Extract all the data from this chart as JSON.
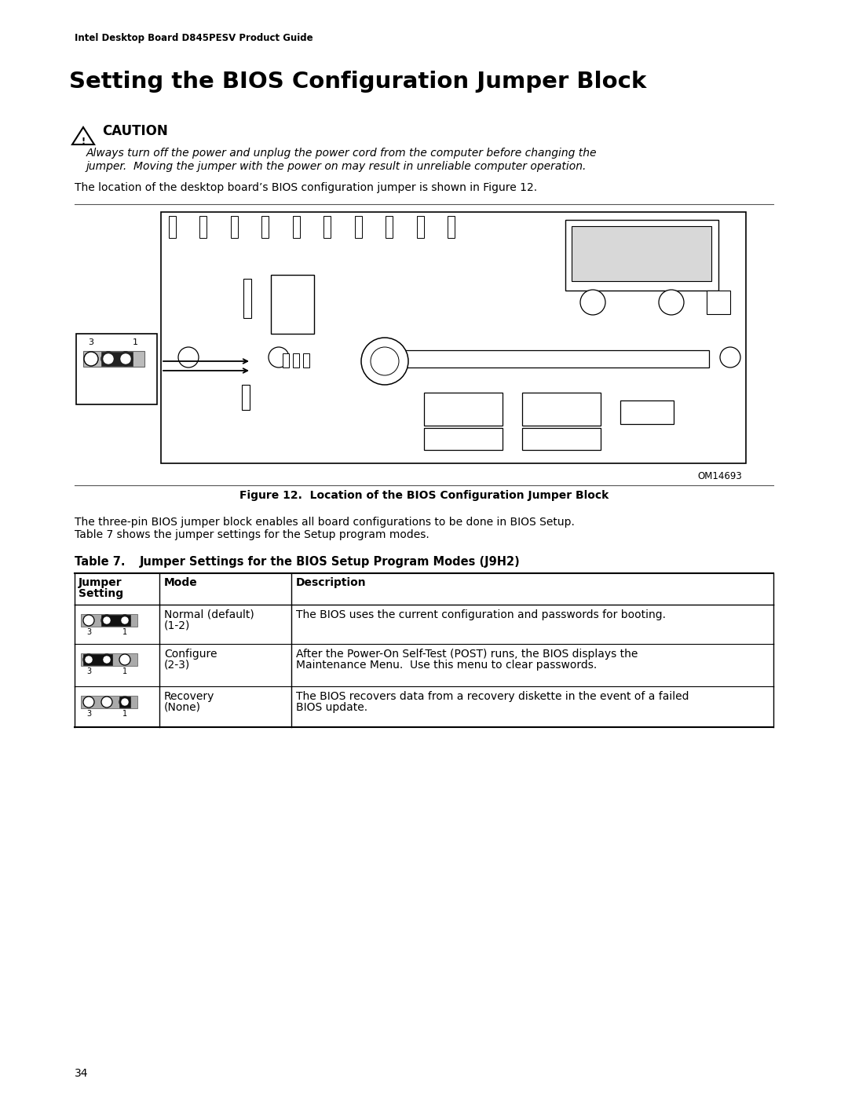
{
  "header_text": "Intel Desktop Board D845PESV Product Guide",
  "title": "Setting the BIOS Configuration Jumper Block",
  "caution_title": "CAUTION",
  "caution_line1": "Always turn off the power and unplug the power cord from the computer before changing the",
  "caution_line2": "jumper.  Moving the jumper with the power on may result in unreliable computer operation.",
  "caution_body": "The location of the desktop board’s BIOS configuration jumper is shown in Figure 12.",
  "figure_caption": "Figure 12.  Location of the BIOS Configuration Jumper Block",
  "figure_label": "OM14693",
  "para_line1": "The three-pin BIOS jumper block enables all board configurations to be done in BIOS Setup.",
  "para_line2": "Table 7 shows the jumper settings for the Setup program modes.",
  "table_label": "Table 7.",
  "table_subtitle": "Jumper Settings for the BIOS Setup Program Modes (J9H2)",
  "col_header1": "Jumper",
  "col_header1b": "Setting",
  "col_header2": "Mode",
  "col_header3": "Description",
  "rows": [
    {
      "jumper_type": "normal",
      "mode_line1": "Normal (default)",
      "mode_line2": "(1-2)",
      "desc_line1": "The BIOS uses the current configuration and passwords for booting.",
      "desc_line2": ""
    },
    {
      "jumper_type": "configure",
      "mode_line1": "Configure",
      "mode_line2": "(2-3)",
      "desc_line1": "After the Power-On Self-Test (POST) runs, the BIOS displays the",
      "desc_line2": "Maintenance Menu.  Use this menu to clear passwords."
    },
    {
      "jumper_type": "recovery",
      "mode_line1": "Recovery",
      "mode_line2": "(None)",
      "desc_line1": "The BIOS recovers data from a recovery diskette in the event of a failed",
      "desc_line2": "BIOS update."
    }
  ],
  "footer_page": "34",
  "bg_color": "#ffffff",
  "text_color": "#000000"
}
